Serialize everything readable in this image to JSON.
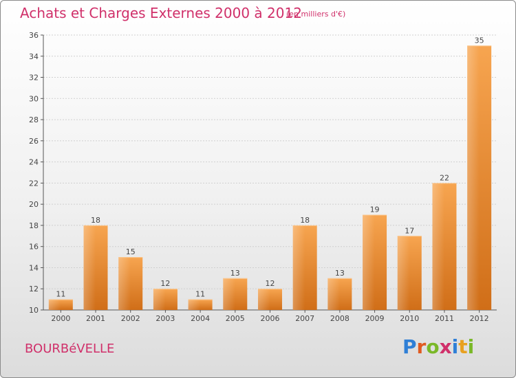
{
  "header": {
    "title": "Achats et Charges Externes 2000 à 2012",
    "subtitle": "(en milliers d'€)"
  },
  "footer": {
    "commune": "BOURBéVELLE",
    "logo_text": "Proxiti"
  },
  "colors": {
    "accent": "#d0306a",
    "bar_light": "#f7a550",
    "bar_dark": "#d06e18"
  },
  "chart_data": {
    "type": "bar",
    "title": "Achats et Charges Externes 2000 à 2012",
    "subtitle": "(en milliers d'€)",
    "xlabel": "",
    "ylabel": "",
    "categories": [
      "2000",
      "2001",
      "2002",
      "2003",
      "2004",
      "2005",
      "2006",
      "2007",
      "2008",
      "2009",
      "2010",
      "2011",
      "2012"
    ],
    "values": [
      11,
      18,
      15,
      12,
      11,
      13,
      12,
      18,
      13,
      19,
      17,
      22,
      35
    ],
    "ylim": [
      10,
      36
    ],
    "yticks": [
      10,
      12,
      14,
      16,
      18,
      20,
      22,
      24,
      26,
      28,
      30,
      32,
      34,
      36
    ],
    "grid": true,
    "legend": "none"
  }
}
